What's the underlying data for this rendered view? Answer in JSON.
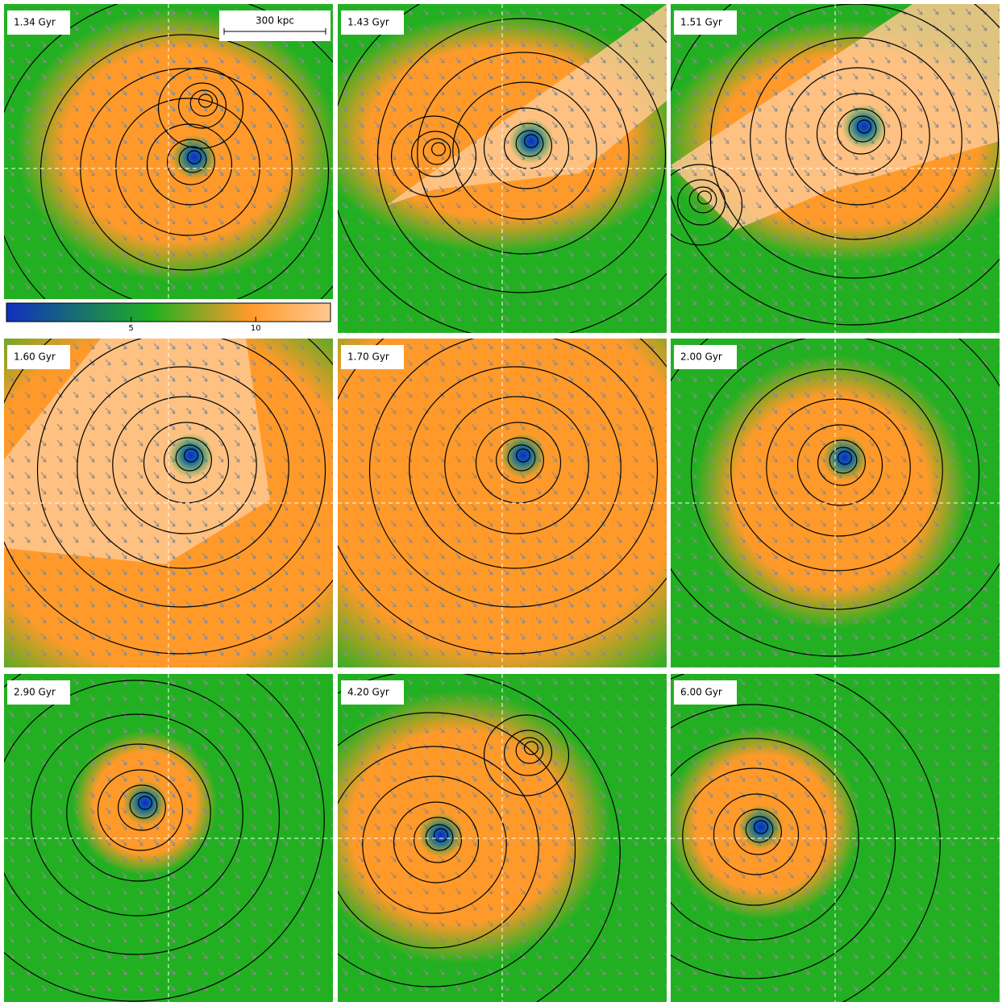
{
  "panels": [
    {
      "label": "1.34 Gyr"
    },
    {
      "label": "1.43 Gyr"
    },
    {
      "label": "1.51 Gyr"
    },
    {
      "label": "1.60 Gyr"
    },
    {
      "label": "1.70 Gyr"
    },
    {
      "label": "2.00 Gyr"
    },
    {
      "label": "2.90 Gyr"
    },
    {
      "label": "4.20 Gyr"
    },
    {
      "label": "6.00 Gyr"
    }
  ],
  "scale_bar": "300 kpc",
  "colorbar": {
    "lim": [
      0,
      13
    ],
    "ticks": [
      5,
      10
    ]
  }
}
